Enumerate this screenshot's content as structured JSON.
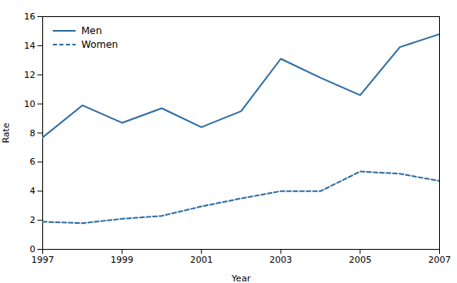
{
  "chart_data": {
    "type": "line",
    "x": [
      1997,
      1998,
      1999,
      2000,
      2001,
      2002,
      2003,
      2004,
      2005,
      2006,
      2007
    ],
    "series": [
      {
        "name": "Men",
        "color": "#2e6da4",
        "line_style": "solid",
        "values": [
          7.7,
          9.9,
          8.7,
          9.7,
          8.4,
          9.5,
          13.1,
          11.8,
          10.6,
          13.9,
          14.8
        ]
      },
      {
        "name": "Women",
        "color": "#2e6da4",
        "line_style": "dashed",
        "values": [
          1.9,
          1.8,
          2.1,
          2.3,
          2.95,
          3.5,
          4.0,
          4.0,
          5.35,
          5.2,
          4.7
        ]
      }
    ],
    "xlabel": "Year",
    "ylabel": "Rate",
    "xlim": [
      1997,
      2007
    ],
    "xticks": [
      1997,
      1999,
      2001,
      2003,
      2005,
      2007
    ],
    "ylim": [
      0,
      16
    ],
    "yticks": [
      0,
      2,
      4,
      6,
      8,
      10,
      12,
      14,
      16
    ],
    "grid": false,
    "legend": "upper left"
  }
}
